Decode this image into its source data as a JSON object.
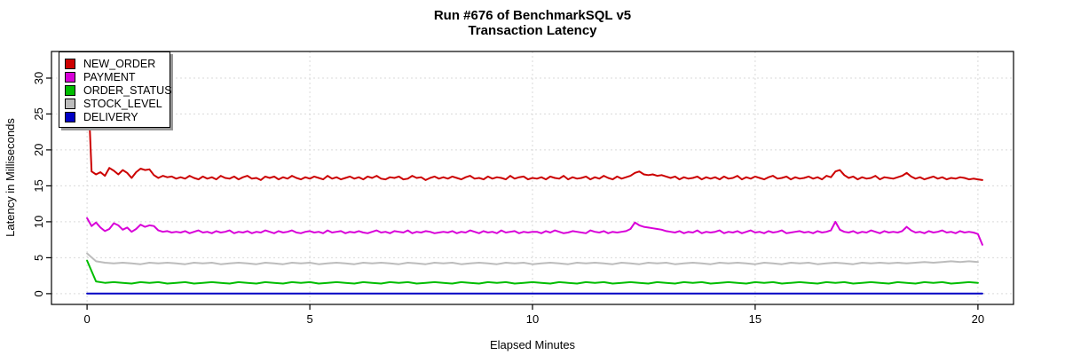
{
  "title": {
    "line1": "Run #676 of BenchmarkSQL v5",
    "line2": "Transaction Latency"
  },
  "axes": {
    "x_label": "Elapsed Minutes",
    "y_label": "Latency in Milliseconds",
    "x_ticks": [
      0,
      5,
      10,
      15,
      20
    ],
    "y_ticks": [
      0,
      5,
      10,
      15,
      20,
      25,
      30
    ],
    "x_range": [
      -0.8,
      20.8
    ],
    "y_range": [
      -1.5,
      33.7
    ],
    "grid_color": "#d9d9d9",
    "axis_color": "#000000"
  },
  "legend": {
    "items": [
      {
        "label": "NEW_ORDER",
        "color": "#cc0000"
      },
      {
        "label": "PAYMENT",
        "color": "#d800d8"
      },
      {
        "label": "ORDER_STATUS",
        "color": "#00bd00"
      },
      {
        "label": "STOCK_LEVEL",
        "color": "#bcbcbc"
      },
      {
        "label": "DELIVERY",
        "color": "#0000c4"
      }
    ]
  },
  "chart_data": {
    "type": "line",
    "title": "Run #676 of BenchmarkSQL v5",
    "subtitle": "Transaction Latency",
    "xlabel": "Elapsed Minutes",
    "ylabel": "Latency in Milliseconds",
    "xlim": [
      0,
      20.1
    ],
    "ylim": [
      0,
      33
    ],
    "grid": true,
    "legend_position": "top-left",
    "series": [
      {
        "name": "NEW_ORDER",
        "color": "#cc0000",
        "x_step": 0.1,
        "values": [
          32.0,
          17.0,
          16.6,
          16.9,
          16.4,
          17.5,
          17.1,
          16.6,
          17.2,
          16.8,
          16.1,
          16.9,
          17.4,
          17.2,
          17.3,
          16.5,
          16.1,
          16.4,
          16.2,
          16.3,
          16.0,
          16.2,
          16.0,
          16.4,
          16.1,
          15.9,
          16.3,
          16.0,
          16.2,
          15.9,
          16.4,
          16.1,
          16.0,
          16.3,
          15.9,
          16.2,
          16.4,
          16.0,
          16.1,
          15.8,
          16.3,
          16.1,
          16.3,
          15.9,
          16.2,
          16.0,
          16.4,
          16.1,
          15.9,
          16.2,
          16.0,
          16.3,
          16.1,
          15.9,
          16.4,
          16.0,
          16.2,
          15.9,
          16.1,
          16.3,
          16.0,
          16.2,
          15.9,
          16.3,
          16.1,
          16.4,
          16.0,
          15.9,
          16.2,
          16.1,
          16.3,
          15.9,
          16.0,
          16.4,
          16.1,
          16.2,
          15.8,
          16.1,
          16.3,
          16.0,
          16.2,
          16.0,
          16.3,
          16.1,
          15.9,
          16.2,
          16.4,
          16.0,
          16.1,
          15.9,
          16.3,
          16.0,
          16.2,
          16.1,
          15.9,
          16.4,
          16.0,
          16.2,
          16.3,
          15.9,
          16.1,
          16.0,
          16.2,
          15.9,
          16.3,
          16.1,
          16.0,
          16.4,
          15.9,
          16.2,
          16.0,
          16.1,
          16.3,
          15.9,
          16.2,
          16.0,
          16.4,
          16.1,
          15.9,
          16.3,
          16.0,
          16.2,
          16.4,
          16.8,
          17.0,
          16.6,
          16.5,
          16.6,
          16.4,
          16.5,
          16.3,
          16.1,
          16.3,
          15.9,
          16.2,
          16.0,
          16.1,
          16.3,
          15.9,
          16.2,
          16.0,
          16.2,
          15.9,
          16.3,
          16.0,
          16.1,
          16.4,
          15.9,
          16.2,
          16.0,
          16.3,
          16.1,
          15.9,
          16.2,
          16.4,
          16.0,
          16.1,
          16.3,
          15.9,
          16.2,
          16.0,
          16.1,
          16.3,
          16.0,
          16.2,
          15.9,
          16.4,
          16.2,
          17.0,
          17.2,
          16.5,
          16.1,
          16.3,
          15.9,
          16.2,
          16.0,
          16.1,
          16.4,
          15.9,
          16.2,
          16.1,
          16.0,
          16.2,
          16.4,
          16.8,
          16.3,
          16.0,
          16.2,
          15.9,
          16.1,
          16.3,
          16.0,
          16.2,
          15.9,
          16.1,
          16.0,
          16.2,
          16.1,
          15.9,
          16.0,
          15.9,
          15.8
        ]
      },
      {
        "name": "PAYMENT",
        "color": "#d800d8",
        "x_step": 0.1,
        "values": [
          10.5,
          9.4,
          9.9,
          9.2,
          8.7,
          9.0,
          9.8,
          9.5,
          8.9,
          9.2,
          8.6,
          9.0,
          9.6,
          9.3,
          9.5,
          9.4,
          8.8,
          8.6,
          8.7,
          8.5,
          8.6,
          8.5,
          8.7,
          8.4,
          8.6,
          8.8,
          8.5,
          8.6,
          8.4,
          8.7,
          8.5,
          8.6,
          8.8,
          8.4,
          8.6,
          8.5,
          8.7,
          8.4,
          8.6,
          8.5,
          8.8,
          8.6,
          8.4,
          8.7,
          8.5,
          8.6,
          8.8,
          8.5,
          8.4,
          8.6,
          8.7,
          8.5,
          8.6,
          8.4,
          8.8,
          8.5,
          8.6,
          8.7,
          8.4,
          8.6,
          8.5,
          8.7,
          8.5,
          8.4,
          8.6,
          8.8,
          8.5,
          8.6,
          8.4,
          8.7,
          8.6,
          8.5,
          8.8,
          8.4,
          8.6,
          8.5,
          8.7,
          8.6,
          8.4,
          8.5,
          8.6,
          8.5,
          8.7,
          8.4,
          8.6,
          8.5,
          8.8,
          8.6,
          8.4,
          8.7,
          8.5,
          8.6,
          8.4,
          8.8,
          8.5,
          8.6,
          8.7,
          8.4,
          8.6,
          8.5,
          8.6,
          8.6,
          8.4,
          8.7,
          8.5,
          8.8,
          8.6,
          8.4,
          8.5,
          8.7,
          8.6,
          8.5,
          8.4,
          8.8,
          8.6,
          8.5,
          8.7,
          8.4,
          8.6,
          8.5,
          8.6,
          8.7,
          9.0,
          9.9,
          9.5,
          9.3,
          9.2,
          9.1,
          9.0,
          8.9,
          8.7,
          8.6,
          8.5,
          8.7,
          8.4,
          8.6,
          8.5,
          8.8,
          8.4,
          8.6,
          8.5,
          8.6,
          8.8,
          8.4,
          8.6,
          8.5,
          8.7,
          8.4,
          8.6,
          8.8,
          8.5,
          8.6,
          8.4,
          8.7,
          8.5,
          8.6,
          8.8,
          8.4,
          8.5,
          8.6,
          8.7,
          8.5,
          8.6,
          8.4,
          8.7,
          8.5,
          8.6,
          8.8,
          10.0,
          8.9,
          8.6,
          8.5,
          8.7,
          8.4,
          8.6,
          8.5,
          8.8,
          8.6,
          8.4,
          8.7,
          8.5,
          8.6,
          8.5,
          8.7,
          9.3,
          8.8,
          8.5,
          8.6,
          8.4,
          8.7,
          8.5,
          8.6,
          8.8,
          8.5,
          8.6,
          8.4,
          8.7,
          8.5,
          8.6,
          8.5,
          8.3,
          6.8
        ]
      },
      {
        "name": "ORDER_STATUS",
        "color": "#00bd00",
        "x_step": 0.2,
        "values": [
          4.6,
          1.7,
          1.5,
          1.6,
          1.5,
          1.4,
          1.6,
          1.5,
          1.6,
          1.4,
          1.5,
          1.6,
          1.4,
          1.5,
          1.6,
          1.5,
          1.4,
          1.6,
          1.5,
          1.4,
          1.6,
          1.5,
          1.4,
          1.6,
          1.5,
          1.6,
          1.4,
          1.5,
          1.6,
          1.5,
          1.4,
          1.6,
          1.5,
          1.4,
          1.6,
          1.5,
          1.6,
          1.4,
          1.5,
          1.6,
          1.5,
          1.4,
          1.6,
          1.5,
          1.4,
          1.6,
          1.5,
          1.6,
          1.4,
          1.5,
          1.6,
          1.5,
          1.4,
          1.6,
          1.5,
          1.4,
          1.6,
          1.5,
          1.6,
          1.4,
          1.5,
          1.6,
          1.5,
          1.4,
          1.6,
          1.5,
          1.4,
          1.6,
          1.5,
          1.6,
          1.4,
          1.5,
          1.6,
          1.5,
          1.4,
          1.6,
          1.5,
          1.6,
          1.4,
          1.5,
          1.6,
          1.5,
          1.4,
          1.6,
          1.5,
          1.6,
          1.4,
          1.5,
          1.6,
          1.5,
          1.4,
          1.6,
          1.5,
          1.4,
          1.6,
          1.5,
          1.6,
          1.4,
          1.5,
          1.6,
          1.5
        ]
      },
      {
        "name": "STOCK_LEVEL",
        "color": "#bcbcbc",
        "x_step": 0.2,
        "values": [
          5.6,
          4.5,
          4.3,
          4.2,
          4.3,
          4.2,
          4.1,
          4.3,
          4.2,
          4.3,
          4.2,
          4.1,
          4.3,
          4.2,
          4.3,
          4.1,
          4.2,
          4.3,
          4.2,
          4.1,
          4.3,
          4.2,
          4.1,
          4.3,
          4.2,
          4.3,
          4.1,
          4.2,
          4.3,
          4.2,
          4.1,
          4.3,
          4.2,
          4.3,
          4.2,
          4.1,
          4.3,
          4.2,
          4.1,
          4.3,
          4.2,
          4.3,
          4.1,
          4.2,
          4.3,
          4.2,
          4.1,
          4.3,
          4.2,
          4.3,
          4.1,
          4.2,
          4.3,
          4.2,
          4.1,
          4.3,
          4.2,
          4.3,
          4.2,
          4.1,
          4.3,
          4.2,
          4.1,
          4.3,
          4.2,
          4.3,
          4.1,
          4.2,
          4.3,
          4.2,
          4.1,
          4.3,
          4.2,
          4.3,
          4.2,
          4.1,
          4.3,
          4.2,
          4.1,
          4.3,
          4.2,
          4.3,
          4.1,
          4.2,
          4.3,
          4.2,
          4.1,
          4.3,
          4.2,
          4.3,
          4.2,
          4.3,
          4.2,
          4.3,
          4.4,
          4.3,
          4.4,
          4.5,
          4.4,
          4.5,
          4.4
        ]
      },
      {
        "name": "DELIVERY",
        "color": "#0000c4",
        "x_step": 20.1,
        "values": [
          0.02,
          0.02
        ]
      }
    ]
  }
}
